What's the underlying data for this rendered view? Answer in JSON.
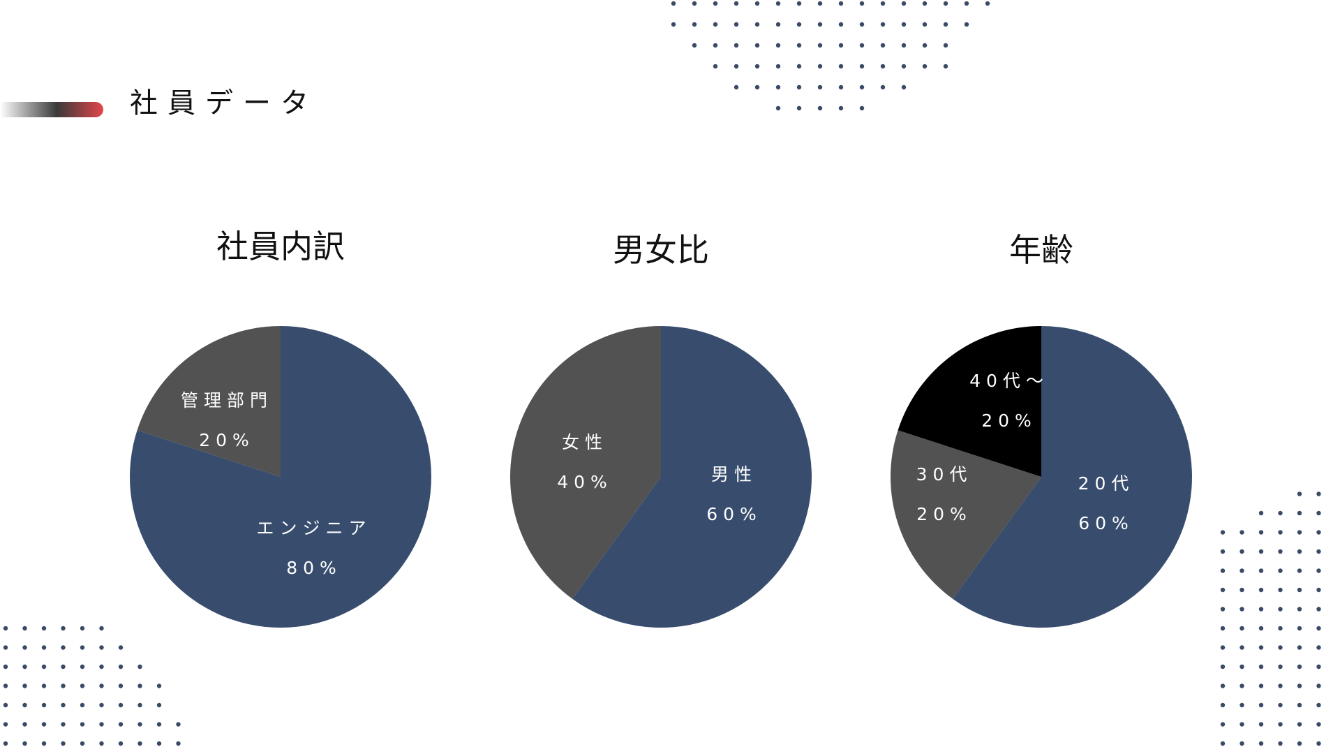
{
  "slide": {
    "title": "社員データ"
  },
  "colors": {
    "navy": "#384d6e",
    "gray": "#525252",
    "black": "#000000",
    "label_text": "#ffffff",
    "dots": "#3a4a66",
    "accent_red": "#e0464b"
  },
  "chart_data": [
    {
      "type": "pie",
      "title": "社員内訳",
      "slices": [
        {
          "label": "エンジニア",
          "value_label": "80%",
          "value": 80,
          "color": "#384d6e"
        },
        {
          "label": "管理部門",
          "value_label": "20%",
          "value": 20,
          "color": "#525252"
        }
      ]
    },
    {
      "type": "pie",
      "title": "男女比",
      "slices": [
        {
          "label": "男性",
          "value_label": "60%",
          "value": 60,
          "color": "#384d6e"
        },
        {
          "label": "女性",
          "value_label": "40%",
          "value": 40,
          "color": "#525252"
        }
      ]
    },
    {
      "type": "pie",
      "title": "年齢",
      "slices": [
        {
          "label": "20代",
          "value_label": "60%",
          "value": 60,
          "color": "#384d6e"
        },
        {
          "label": "30代",
          "value_label": "20%",
          "value": 20,
          "color": "#525252"
        },
        {
          "label": "40代～",
          "value_label": "20%",
          "value": 20,
          "color": "#000000"
        }
      ]
    }
  ]
}
